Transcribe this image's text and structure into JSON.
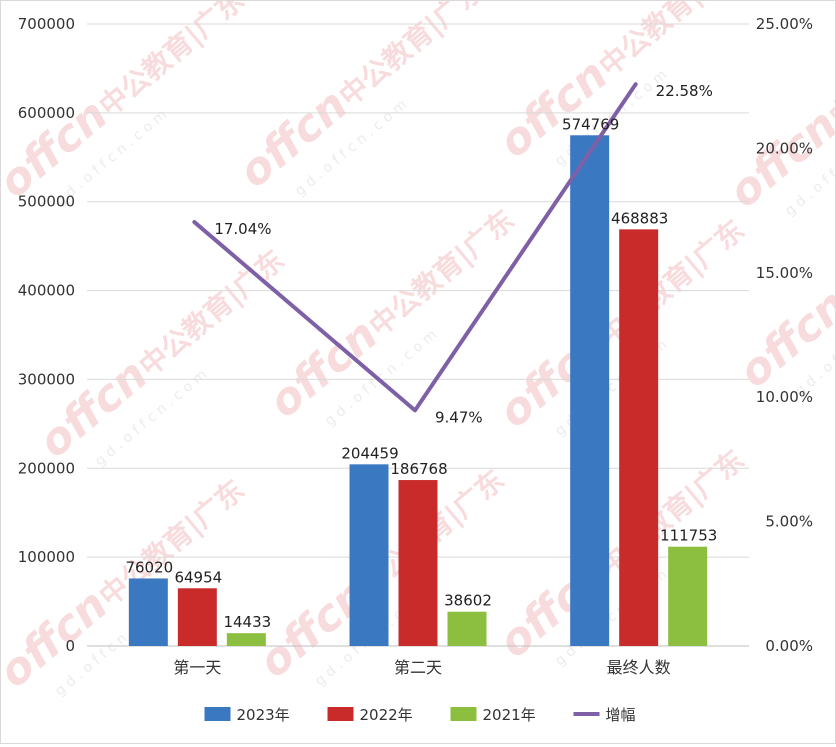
{
  "chart_data": {
    "type": "bar",
    "categories": [
      "第一天",
      "第二天",
      "最终人数"
    ],
    "series": [
      {
        "name": "2023年",
        "type": "bar",
        "axis": "left",
        "color": "#3b78c2",
        "values": [
          76020,
          204459,
          574769
        ]
      },
      {
        "name": "2022年",
        "type": "bar",
        "axis": "left",
        "color": "#c92b2b",
        "values": [
          64954,
          186768,
          468883
        ]
      },
      {
        "name": "2021年",
        "type": "bar",
        "axis": "left",
        "color": "#8cbf3f",
        "values": [
          14433,
          38602,
          111753
        ]
      },
      {
        "name": "增幅",
        "type": "line",
        "axis": "right",
        "color": "#7e60a6",
        "values": [
          17.04,
          9.47,
          22.58
        ],
        "labels": [
          "17.04%",
          "9.47%",
          "22.58%"
        ]
      }
    ],
    "y_left": {
      "lim": [
        0,
        700000
      ],
      "ticks": [
        "0",
        "100000",
        "200000",
        "300000",
        "400000",
        "500000",
        "600000",
        "700000"
      ]
    },
    "y_right": {
      "lim": [
        0,
        25
      ],
      "ticks": [
        "0.00%",
        "5.00%",
        "10.00%",
        "15.00%",
        "20.00%",
        "25.00%"
      ]
    },
    "grid": true,
    "legend_position": "bottom",
    "title": "",
    "xlabel": "",
    "ylabel": ""
  },
  "watermark": {
    "brand": "offcn",
    "text": "中公教育|广东",
    "url": "g d . o f f c n . c o m"
  }
}
